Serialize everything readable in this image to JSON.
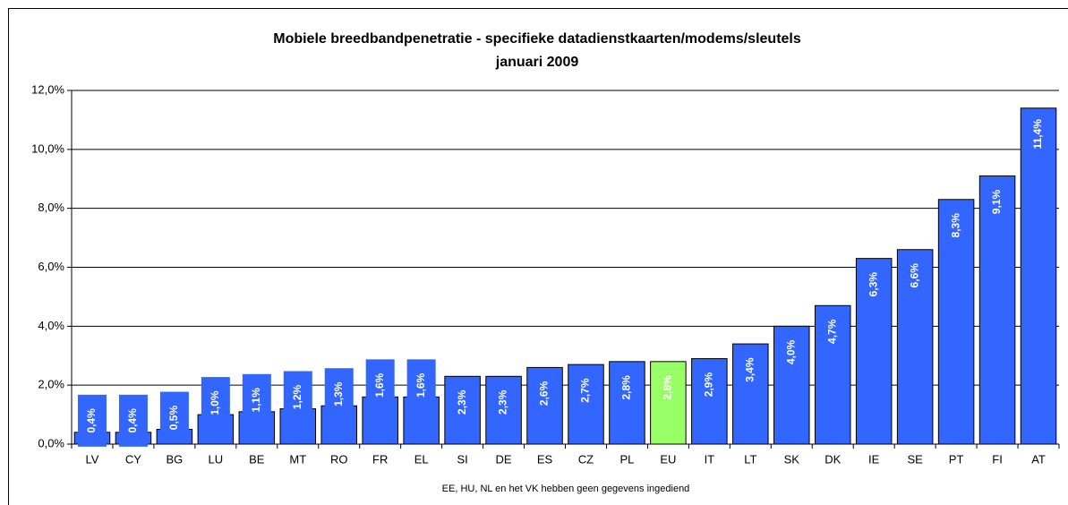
{
  "chart_data": {
    "type": "bar",
    "title": "Mobiele breedbandpenetratie - specifieke datadienstkaarten/modems/sleutels",
    "subtitle": "januari 2009",
    "note": "EE, HU, NL en het VK hebben geen gegevens ingediend",
    "categories": [
      "LV",
      "CY",
      "BG",
      "LU",
      "BE",
      "MT",
      "RO",
      "FR",
      "EL",
      "SI",
      "DE",
      "ES",
      "CZ",
      "PL",
      "EU",
      "IT",
      "LT",
      "SK",
      "DK",
      "IE",
      "SE",
      "PT",
      "FI",
      "AT"
    ],
    "values": [
      0.4,
      0.4,
      0.5,
      1.0,
      1.1,
      1.2,
      1.3,
      1.6,
      1.6,
      2.3,
      2.3,
      2.6,
      2.7,
      2.8,
      2.8,
      2.9,
      3.4,
      4.0,
      4.7,
      6.3,
      6.6,
      8.3,
      9.1,
      11.4
    ],
    "value_labels": [
      "0,4%",
      "0,4%",
      "0,5%",
      "1,0%",
      "1,1%",
      "1,2%",
      "1,3%",
      "1,6%",
      "1,6%",
      "2,3%",
      "2,3%",
      "2,6%",
      "2,7%",
      "2,8%",
      "2,8%",
      "2,9%",
      "3,4%",
      "4,0%",
      "4,7%",
      "6,3%",
      "6,6%",
      "8,3%",
      "9,1%",
      "11,4%"
    ],
    "colors": [
      "#3366ff",
      "#3366ff",
      "#3366ff",
      "#3366ff",
      "#3366ff",
      "#3366ff",
      "#3366ff",
      "#3366ff",
      "#3366ff",
      "#3366ff",
      "#3366ff",
      "#3366ff",
      "#3366ff",
      "#3366ff",
      "#99ff66",
      "#3366ff",
      "#3366ff",
      "#3366ff",
      "#3366ff",
      "#3366ff",
      "#3366ff",
      "#3366ff",
      "#3366ff",
      "#3366ff"
    ],
    "ylim": [
      0,
      12
    ],
    "yticks": [
      {
        "value": 0,
        "label": "0,0%"
      },
      {
        "value": 2,
        "label": "2,0%"
      },
      {
        "value": 4,
        "label": "4,0%"
      },
      {
        "value": 6,
        "label": "6,0%"
      },
      {
        "value": 8,
        "label": "8,0%"
      },
      {
        "value": 10,
        "label": "10,0%"
      },
      {
        "value": 12,
        "label": "12,0%"
      }
    ],
    "grid": true
  }
}
